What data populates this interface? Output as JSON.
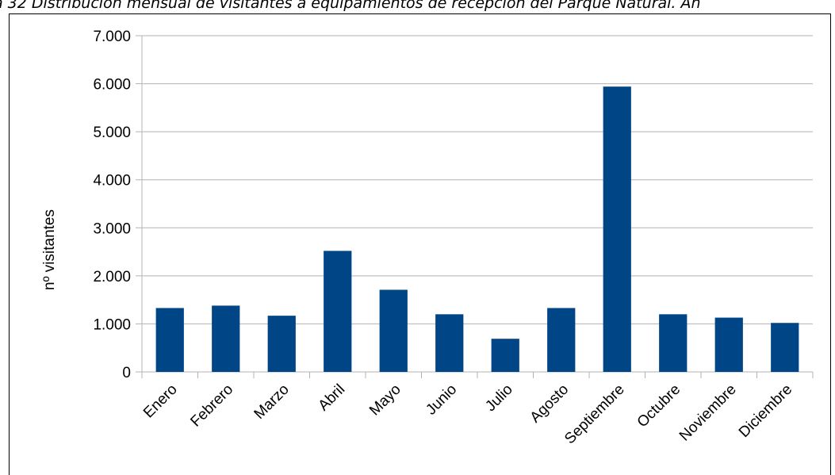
{
  "caption": "a 32  Distribución mensual de visitantes a equipamientos de recepción del Parque Natural. Añ",
  "chart_data": {
    "type": "bar",
    "title": "",
    "xlabel": "",
    "ylabel": "nº visitantes",
    "categories": [
      "Enero",
      "Febrero",
      "Marzo",
      "Abril",
      "Mayo",
      "Junio",
      "Julio",
      "Agosto",
      "Septiembre",
      "Octubre",
      "Noviembre",
      "Diciembre"
    ],
    "values": [
      1330,
      1380,
      1170,
      2520,
      1710,
      1200,
      690,
      1330,
      5940,
      1200,
      1130,
      1020
    ],
    "ylim": [
      0,
      7000
    ],
    "yticks": [
      0,
      1000,
      2000,
      3000,
      4000,
      5000,
      6000,
      7000
    ],
    "ytick_labels": [
      "0",
      "1.000",
      "2.000",
      "3.000",
      "4.000",
      "5.000",
      "6.000",
      "7.000"
    ],
    "grid": true,
    "legend": "none",
    "bar_color": "#004586",
    "grid_color": "#b3b3b3"
  }
}
